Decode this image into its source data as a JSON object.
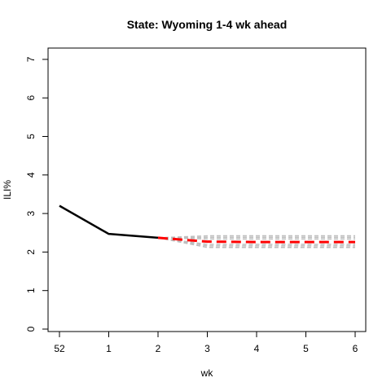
{
  "chart_data": {
    "type": "line",
    "title": "State: Wyoming 1-4 wk ahead",
    "xlabel": "wk",
    "ylabel": "ILI%",
    "x_ticks": [
      "52",
      "1",
      "2",
      "3",
      "4",
      "5",
      "6"
    ],
    "y_ticks": [
      "0",
      "1",
      "2",
      "3",
      "4",
      "5",
      "6",
      "7"
    ],
    "ylim": [
      0,
      7
    ],
    "grid": false,
    "series": [
      {
        "role": "observed",
        "color": "#000000",
        "x": [
          "52",
          "1",
          "2"
        ],
        "values": [
          3.2,
          2.47,
          2.37
        ]
      },
      {
        "role": "forecast",
        "color": "#ff0000",
        "x": [
          "2",
          "3",
          "4",
          "5",
          "6"
        ],
        "values": [
          2.37,
          2.27,
          2.26,
          2.26,
          2.26
        ]
      }
    ],
    "bands": [
      {
        "color": "#bebebe",
        "x": [
          "2",
          "3",
          "4",
          "5",
          "6"
        ],
        "lower": [
          2.37,
          2.12,
          2.12,
          2.12,
          2.12
        ],
        "upper": [
          2.37,
          2.42,
          2.42,
          2.42,
          2.42
        ]
      },
      {
        "color": "#bebebe",
        "x": [
          "2",
          "3",
          "4",
          "5",
          "6"
        ],
        "lower": [
          2.37,
          2.16,
          2.16,
          2.16,
          2.16
        ],
        "upper": [
          2.37,
          2.38,
          2.38,
          2.38,
          2.38
        ]
      },
      {
        "color": "#bebebe",
        "x": [
          "2",
          "3",
          "4",
          "5",
          "6"
        ],
        "lower": [
          2.37,
          2.2,
          2.2,
          2.2,
          2.2
        ],
        "upper": [
          2.37,
          2.34,
          2.34,
          2.34,
          2.34
        ]
      }
    ]
  }
}
